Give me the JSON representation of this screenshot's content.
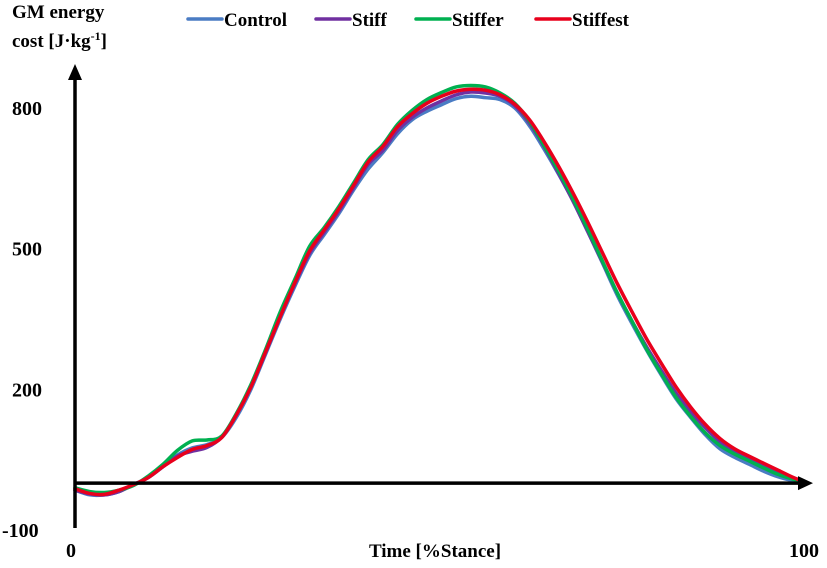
{
  "chart_data": {
    "type": "line",
    "ylabel": {
      "line1": "GM energy",
      "line2_prefix": "cost  [J·kg",
      "line2_sup": "-1",
      "line2_suffix": "]"
    },
    "xlabel": "Time  [%Stance]",
    "xlim": [
      0,
      100
    ],
    "ylim": [
      -100,
      900
    ],
    "x_axis_crossing_y": 0,
    "yticks": [
      {
        "value": 800,
        "label": "800"
      },
      {
        "value": 500,
        "label": "500"
      },
      {
        "value": 200,
        "label": "200"
      },
      {
        "value": -100,
        "label": "-100"
      }
    ],
    "xticks": [
      {
        "value": 0,
        "label": "0"
      },
      {
        "value": 100,
        "label": "100"
      }
    ],
    "grid": false,
    "legend_position": "top",
    "x": [
      0,
      2,
      4,
      6,
      8,
      10,
      12,
      14,
      16,
      18,
      20,
      22,
      24,
      26,
      28,
      30,
      32,
      34,
      36,
      38,
      40,
      42,
      44,
      46,
      48,
      50,
      52,
      54,
      56,
      58,
      60,
      62,
      64,
      66,
      68,
      70,
      72,
      74,
      76,
      78,
      80,
      82,
      84,
      86,
      88,
      90,
      92,
      94,
      96,
      98,
      100
    ],
    "series": [
      {
        "name": "Control",
        "color": "#4A7CC4",
        "values": [
          -15,
          -25,
          -25,
          -18,
          -3,
          12,
          35,
          60,
          75,
          82,
          97,
          140,
          200,
          275,
          350,
          420,
          485,
          530,
          575,
          625,
          670,
          705,
          745,
          775,
          793,
          807,
          820,
          825,
          822,
          818,
          800,
          762,
          712,
          658,
          600,
          535,
          468,
          400,
          340,
          283,
          230,
          180,
          140,
          103,
          73,
          55,
          40,
          25,
          13,
          5,
          0
        ]
      },
      {
        "name": "Stiff",
        "color": "#7030A0",
        "values": [
          -15,
          -23,
          -25,
          -18,
          -3,
          12,
          35,
          58,
          68,
          76,
          98,
          145,
          205,
          278,
          355,
          425,
          490,
          535,
          580,
          630,
          680,
          710,
          752,
          780,
          800,
          815,
          828,
          834,
          832,
          825,
          805,
          768,
          718,
          660,
          600,
          535,
          470,
          405,
          345,
          290,
          240,
          192,
          152,
          118,
          88,
          67,
          50,
          35,
          20,
          10,
          0
        ]
      },
      {
        "name": "Stiffer",
        "color": "#00B050",
        "values": [
          -10,
          -18,
          -20,
          -15,
          -5,
          15,
          40,
          70,
          90,
          92,
          100,
          148,
          210,
          285,
          365,
          435,
          505,
          545,
          590,
          640,
          690,
          722,
          765,
          795,
          818,
          833,
          845,
          848,
          845,
          832,
          810,
          772,
          720,
          665,
          605,
          540,
          472,
          405,
          345,
          285,
          233,
          183,
          142,
          107,
          80,
          62,
          47,
          32,
          18,
          8,
          0
        ]
      },
      {
        "name": "Stiffest",
        "color": "#E8001C",
        "values": [
          -12,
          -22,
          -24,
          -15,
          -3,
          12,
          35,
          55,
          72,
          80,
          97,
          145,
          205,
          280,
          355,
          428,
          495,
          540,
          585,
          635,
          685,
          718,
          760,
          788,
          810,
          825,
          836,
          840,
          838,
          828,
          808,
          775,
          728,
          675,
          617,
          555,
          490,
          425,
          365,
          307,
          255,
          205,
          162,
          125,
          95,
          73,
          57,
          42,
          27,
          12,
          0
        ]
      }
    ]
  }
}
